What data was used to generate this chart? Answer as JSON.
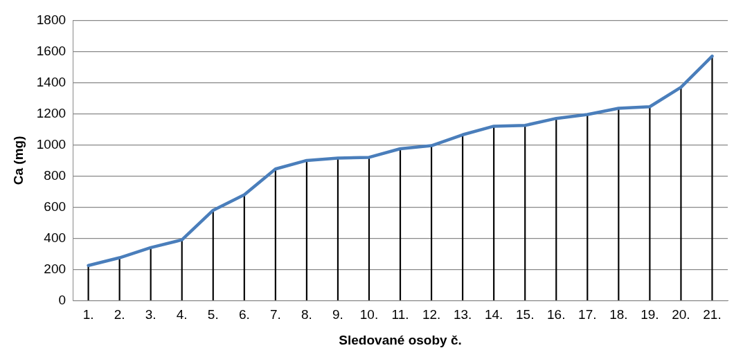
{
  "chart_data": {
    "type": "line",
    "xlabel": "Sledované osoby č.",
    "ylabel": "Ca (mg)",
    "categories": [
      "1.",
      "2.",
      "3.",
      "4.",
      "5.",
      "6.",
      "7.",
      "8.",
      "9.",
      "10.",
      "11.",
      "12.",
      "13.",
      "14.",
      "15.",
      "16.",
      "17.",
      "18.",
      "19.",
      "20.",
      "21."
    ],
    "series": [
      {
        "color": "#4a7ebb",
        "values": [
          225,
          275,
          340,
          390,
          580,
          680,
          845,
          900,
          915,
          920,
          975,
          995,
          1065,
          1120,
          1125,
          1170,
          1195,
          1235,
          1245,
          1370,
          1570
        ]
      },
      {
        "type": "bar",
        "color": "#000000",
        "values": [
          225,
          275,
          340,
          390,
          580,
          680,
          845,
          900,
          915,
          920,
          975,
          995,
          1065,
          1120,
          1125,
          1170,
          1195,
          1235,
          1245,
          1370,
          1570
        ]
      }
    ],
    "ylim": [
      0,
      1800
    ],
    "yticks": [
      0,
      200,
      400,
      600,
      800,
      1000,
      1200,
      1400,
      1600,
      1800
    ],
    "grid": "y",
    "legend": false,
    "marker": "none",
    "line_style": "solid"
  }
}
